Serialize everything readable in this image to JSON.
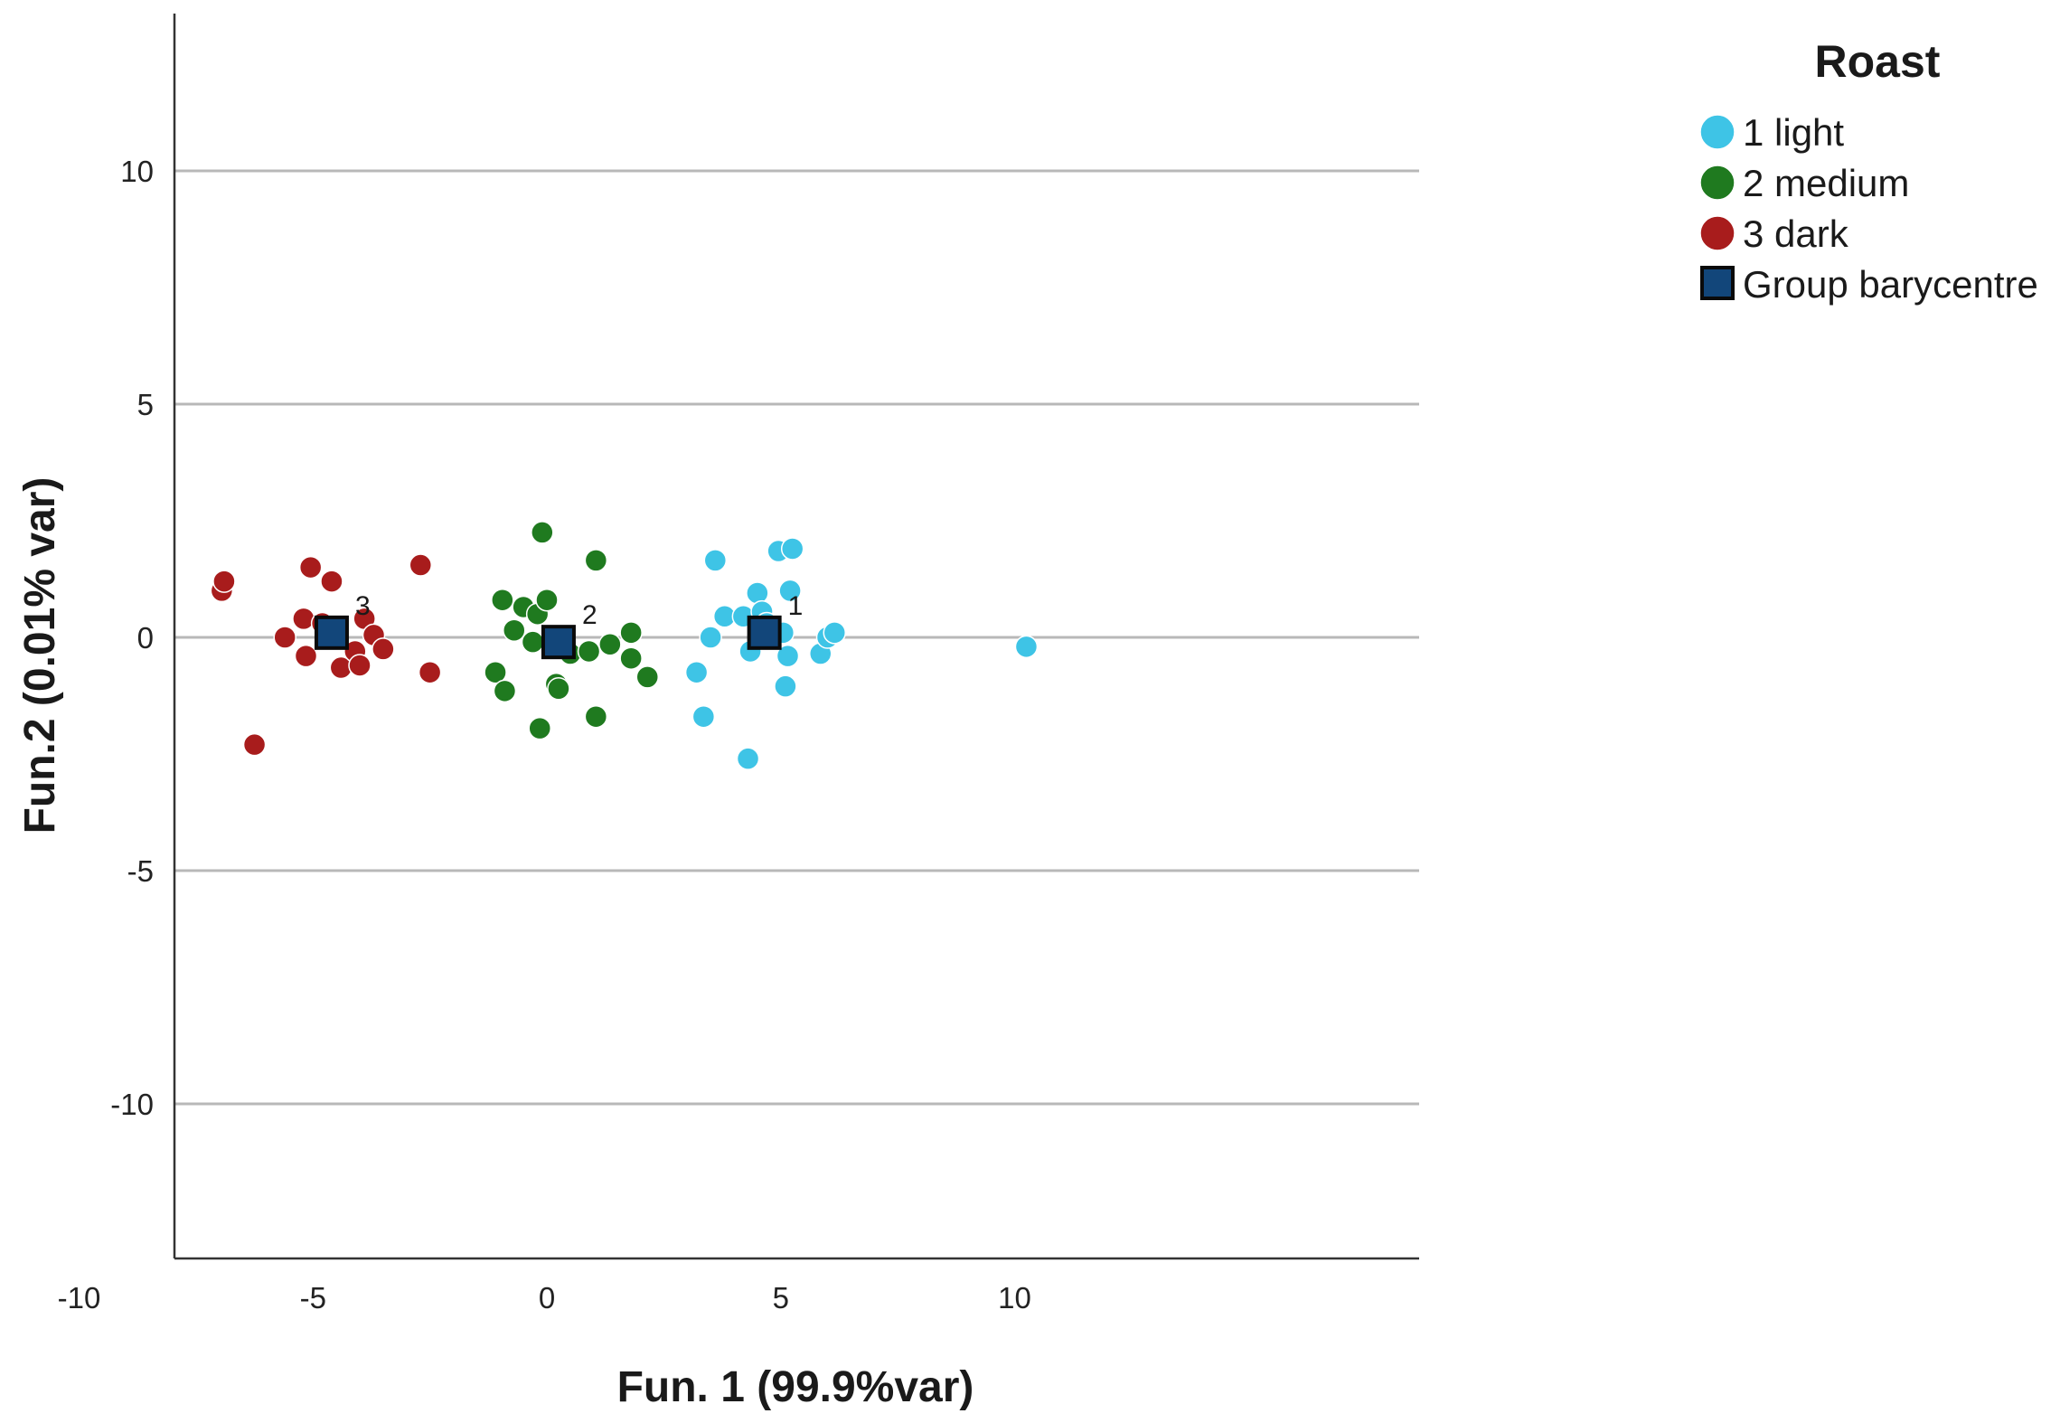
{
  "chart_data": {
    "type": "scatter",
    "xlabel": "Fun. 1 (99.9%var)",
    "ylabel": "Fun.2 (0.01% var)",
    "xlim": [
      -13.3,
      13.3
    ],
    "ylim": [
      -13.3,
      13.3
    ],
    "xticks": [
      -10,
      -5,
      0,
      5,
      10
    ],
    "yticks": [
      -10,
      -5,
      0,
      5,
      10
    ],
    "grid": "horizontal",
    "legend": {
      "title": "Roast",
      "position": "top-right",
      "items": [
        "1 light",
        "2 medium",
        "3 dark",
        "Group barycentre"
      ]
    },
    "series": [
      {
        "name": "1 light",
        "color": "#3ec4e6",
        "points": [
          [
            3.2,
            -0.75
          ],
          [
            3.35,
            -1.7
          ],
          [
            3.5,
            0.0
          ],
          [
            3.6,
            1.65
          ],
          [
            3.8,
            0.45
          ],
          [
            4.2,
            0.45
          ],
          [
            4.3,
            -2.6
          ],
          [
            4.35,
            -0.3
          ],
          [
            4.5,
            0.95
          ],
          [
            4.6,
            0.55
          ],
          [
            4.7,
            0.3
          ],
          [
            4.8,
            0.0
          ],
          [
            4.95,
            1.85
          ],
          [
            5.05,
            0.1
          ],
          [
            5.1,
            -1.05
          ],
          [
            5.15,
            -0.4
          ],
          [
            5.2,
            1.0
          ],
          [
            5.25,
            1.9
          ],
          [
            5.85,
            -0.35
          ],
          [
            6.0,
            0.0
          ],
          [
            6.15,
            0.1
          ],
          [
            10.25,
            -0.2
          ]
        ]
      },
      {
        "name": "2 medium",
        "color": "#1f7a1f",
        "points": [
          [
            -1.1,
            -0.75
          ],
          [
            -0.95,
            0.8
          ],
          [
            -0.9,
            -1.15
          ],
          [
            -0.7,
            0.15
          ],
          [
            -0.5,
            0.65
          ],
          [
            -0.3,
            -0.1
          ],
          [
            -0.2,
            0.5
          ],
          [
            -0.15,
            -1.95
          ],
          [
            -0.1,
            2.25
          ],
          [
            0.0,
            0.8
          ],
          [
            0.2,
            -1.0
          ],
          [
            0.25,
            -1.1
          ],
          [
            0.5,
            -0.35
          ],
          [
            0.9,
            -0.3
          ],
          [
            1.05,
            1.65
          ],
          [
            1.05,
            -1.7
          ],
          [
            1.35,
            -0.15
          ],
          [
            1.8,
            0.1
          ],
          [
            1.8,
            -0.45
          ],
          [
            2.15,
            -0.85
          ]
        ]
      },
      {
        "name": "3 dark",
        "color": "#a81c1c",
        "points": [
          [
            -6.95,
            1.0
          ],
          [
            -6.9,
            1.2
          ],
          [
            -6.25,
            -2.3
          ],
          [
            -5.6,
            0.0
          ],
          [
            -5.2,
            0.4
          ],
          [
            -5.15,
            -0.4
          ],
          [
            -5.05,
            1.5
          ],
          [
            -4.8,
            0.3
          ],
          [
            -4.6,
            1.2
          ],
          [
            -4.5,
            0.0
          ],
          [
            -4.4,
            -0.65
          ],
          [
            -4.1,
            -0.3
          ],
          [
            -4.0,
            -0.6
          ],
          [
            -3.9,
            0.4
          ],
          [
            -3.7,
            0.05
          ],
          [
            -3.5,
            -0.25
          ],
          [
            -2.7,
            1.55
          ],
          [
            -2.5,
            -0.75
          ]
        ]
      }
    ],
    "barycentres": {
      "name": "Group barycentre",
      "color": "#12467a",
      "points": [
        {
          "label": "1",
          "x": 4.65,
          "y": 0.1
        },
        {
          "label": "2",
          "x": 0.25,
          "y": -0.1
        },
        {
          "label": "3",
          "x": -4.6,
          "y": 0.1
        }
      ]
    }
  }
}
